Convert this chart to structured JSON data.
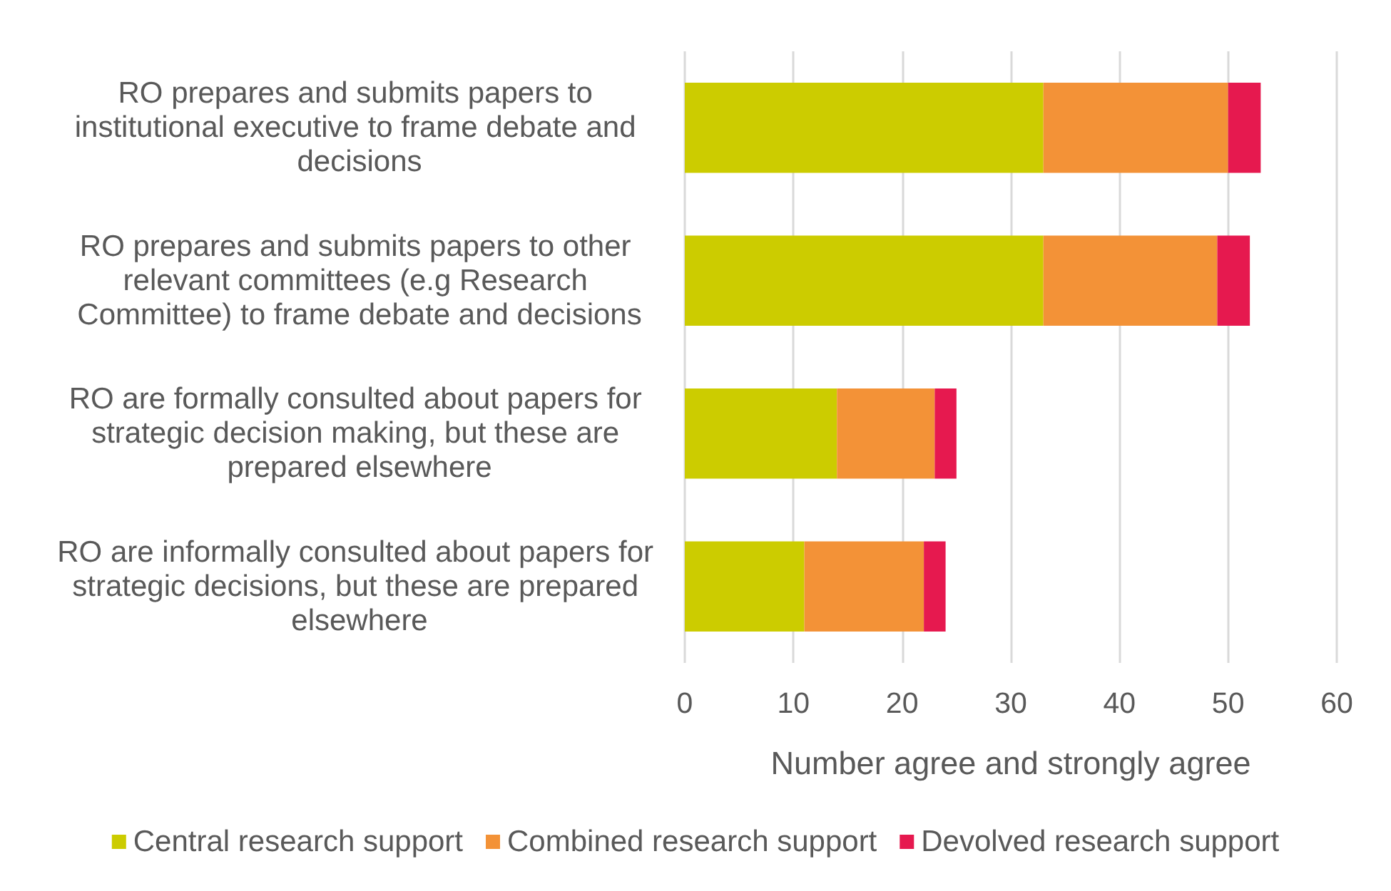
{
  "chart_data": {
    "type": "bar",
    "orientation": "horizontal",
    "stacked": true,
    "categories": [
      "RO prepares and submits papers to institutional executive to frame debate and decisions",
      "RO prepares and submits papers to other relevant committees (e.g Research Committee) to frame debate and decisions",
      "RO are formally consulted about papers for strategic decision making, but these are prepared elsewhere",
      "RO are informally consulted about papers for strategic decisions, but these are prepared elsewhere"
    ],
    "series": [
      {
        "name": "Central research support",
        "color": "#cccc00",
        "values": [
          33,
          33,
          14,
          11
        ]
      },
      {
        "name": "Combined research support",
        "color": "#f39237",
        "values": [
          17,
          16,
          9,
          11
        ]
      },
      {
        "name": "Devolved research support",
        "color": "#e6194f",
        "values": [
          3,
          3,
          2,
          2
        ]
      }
    ],
    "xlabel": "Number agree and strongly agree",
    "xlim": [
      0,
      60
    ],
    "xticks": [
      0,
      10,
      20,
      30,
      40,
      50,
      60
    ],
    "grid": "x",
    "legend": "bottom"
  }
}
